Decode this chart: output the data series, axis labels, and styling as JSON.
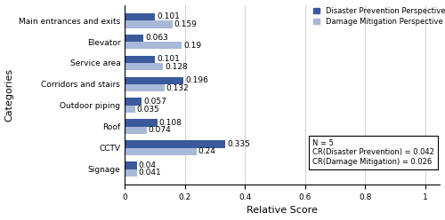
{
  "categories": [
    "Signage",
    "CCTV",
    "Roof",
    "Outdoor piping",
    "Corridors and stairs",
    "Service area",
    "Elevator",
    "Main entrances and exits"
  ],
  "disaster_prevention": [
    0.04,
    0.335,
    0.108,
    0.057,
    0.196,
    0.101,
    0.063,
    0.101
  ],
  "damage_mitigation": [
    0.041,
    0.24,
    0.074,
    0.035,
    0.132,
    0.128,
    0.19,
    0.159
  ],
  "dp_labels": [
    "0.04",
    "0.335",
    "0.108",
    "0.057",
    "0.196",
    "0.101",
    "0.063",
    "0.101"
  ],
  "dm_labels": [
    "0.041",
    "0.24",
    "0.074",
    "0.035",
    "0.132",
    "0.128",
    "0.19",
    "0.159"
  ],
  "color_disaster": "#3a5a9c",
  "color_damage": "#a8b8d8",
  "legend_labels": [
    "Disaster Prevention Perspective",
    "Damage Mitigation Perspective"
  ],
  "xlabel": "Relative Score",
  "ylabel": "Categories",
  "xlim": [
    0,
    1.05
  ],
  "xticks": [
    0,
    0.2,
    0.4,
    0.6,
    0.8,
    1.0
  ],
  "note_text": "N = 5\nCR(Disaster Prevention) = 0.042\nCR(Damage Mitigation) = 0.026",
  "bar_height": 0.35,
  "label_fontsize": 6.5,
  "axis_fontsize": 8
}
